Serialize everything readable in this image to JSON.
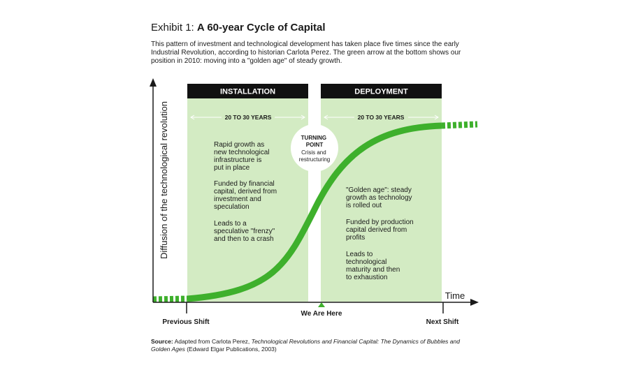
{
  "header": {
    "exhibit_label": "Exhibit 1:",
    "title": "A 60-year Cycle of Capital",
    "intro": "This pattern of investment and technological development has taken place five times since the early Industrial Revolution, according to historian Carlota Perez. The green arrow at the bottom shows our position in 2010: moving into a \"golden age\" of steady growth."
  },
  "diagram": {
    "y_axis_label": "Diffusion of the technological revolution",
    "x_axis_label": "Time",
    "installation": {
      "title": "INSTALLATION",
      "duration": "20 TO 30 YEARS",
      "paragraphs": [
        [
          "Rapid growth as",
          "new technological",
          "infrastructure is",
          "put in place"
        ],
        [
          "Funded by financial",
          "capital, derived from",
          "investment and",
          "speculation"
        ],
        [
          "Leads to a",
          "speculative \"frenzy\"",
          "and then to a crash"
        ]
      ]
    },
    "deployment": {
      "title": "DEPLOYMENT",
      "duration": "20 TO 30 YEARS",
      "paragraphs": [
        [
          "\"Golden age\": steady",
          "growth as technology",
          "is rolled out"
        ],
        [
          "Funded by production",
          "capital derived from",
          "profits"
        ],
        [
          "Leads to",
          "technological",
          "maturity and then",
          "to exhaustion"
        ]
      ]
    },
    "turning_point": {
      "title_lines": [
        "TURNING",
        "POINT"
      ],
      "sub_lines": [
        "Crisis and",
        "restructuring"
      ]
    },
    "x_labels": {
      "previous": "Previous Shift",
      "current": "We Are Here",
      "next": "Next Shift"
    },
    "colors": {
      "panel_fill": "#d3ebc3",
      "header_fill": "#111111",
      "curve": "#3eb02c",
      "marker": "#3eb02c"
    }
  },
  "source": {
    "label": "Source:",
    "before": "Adapted from Carlota Perez,",
    "italic": "Technological Revolutions and Financial Capital: The Dynamics of Bubbles and Golden Ages",
    "after": "(Edward Elgar Publications, 2003)"
  }
}
